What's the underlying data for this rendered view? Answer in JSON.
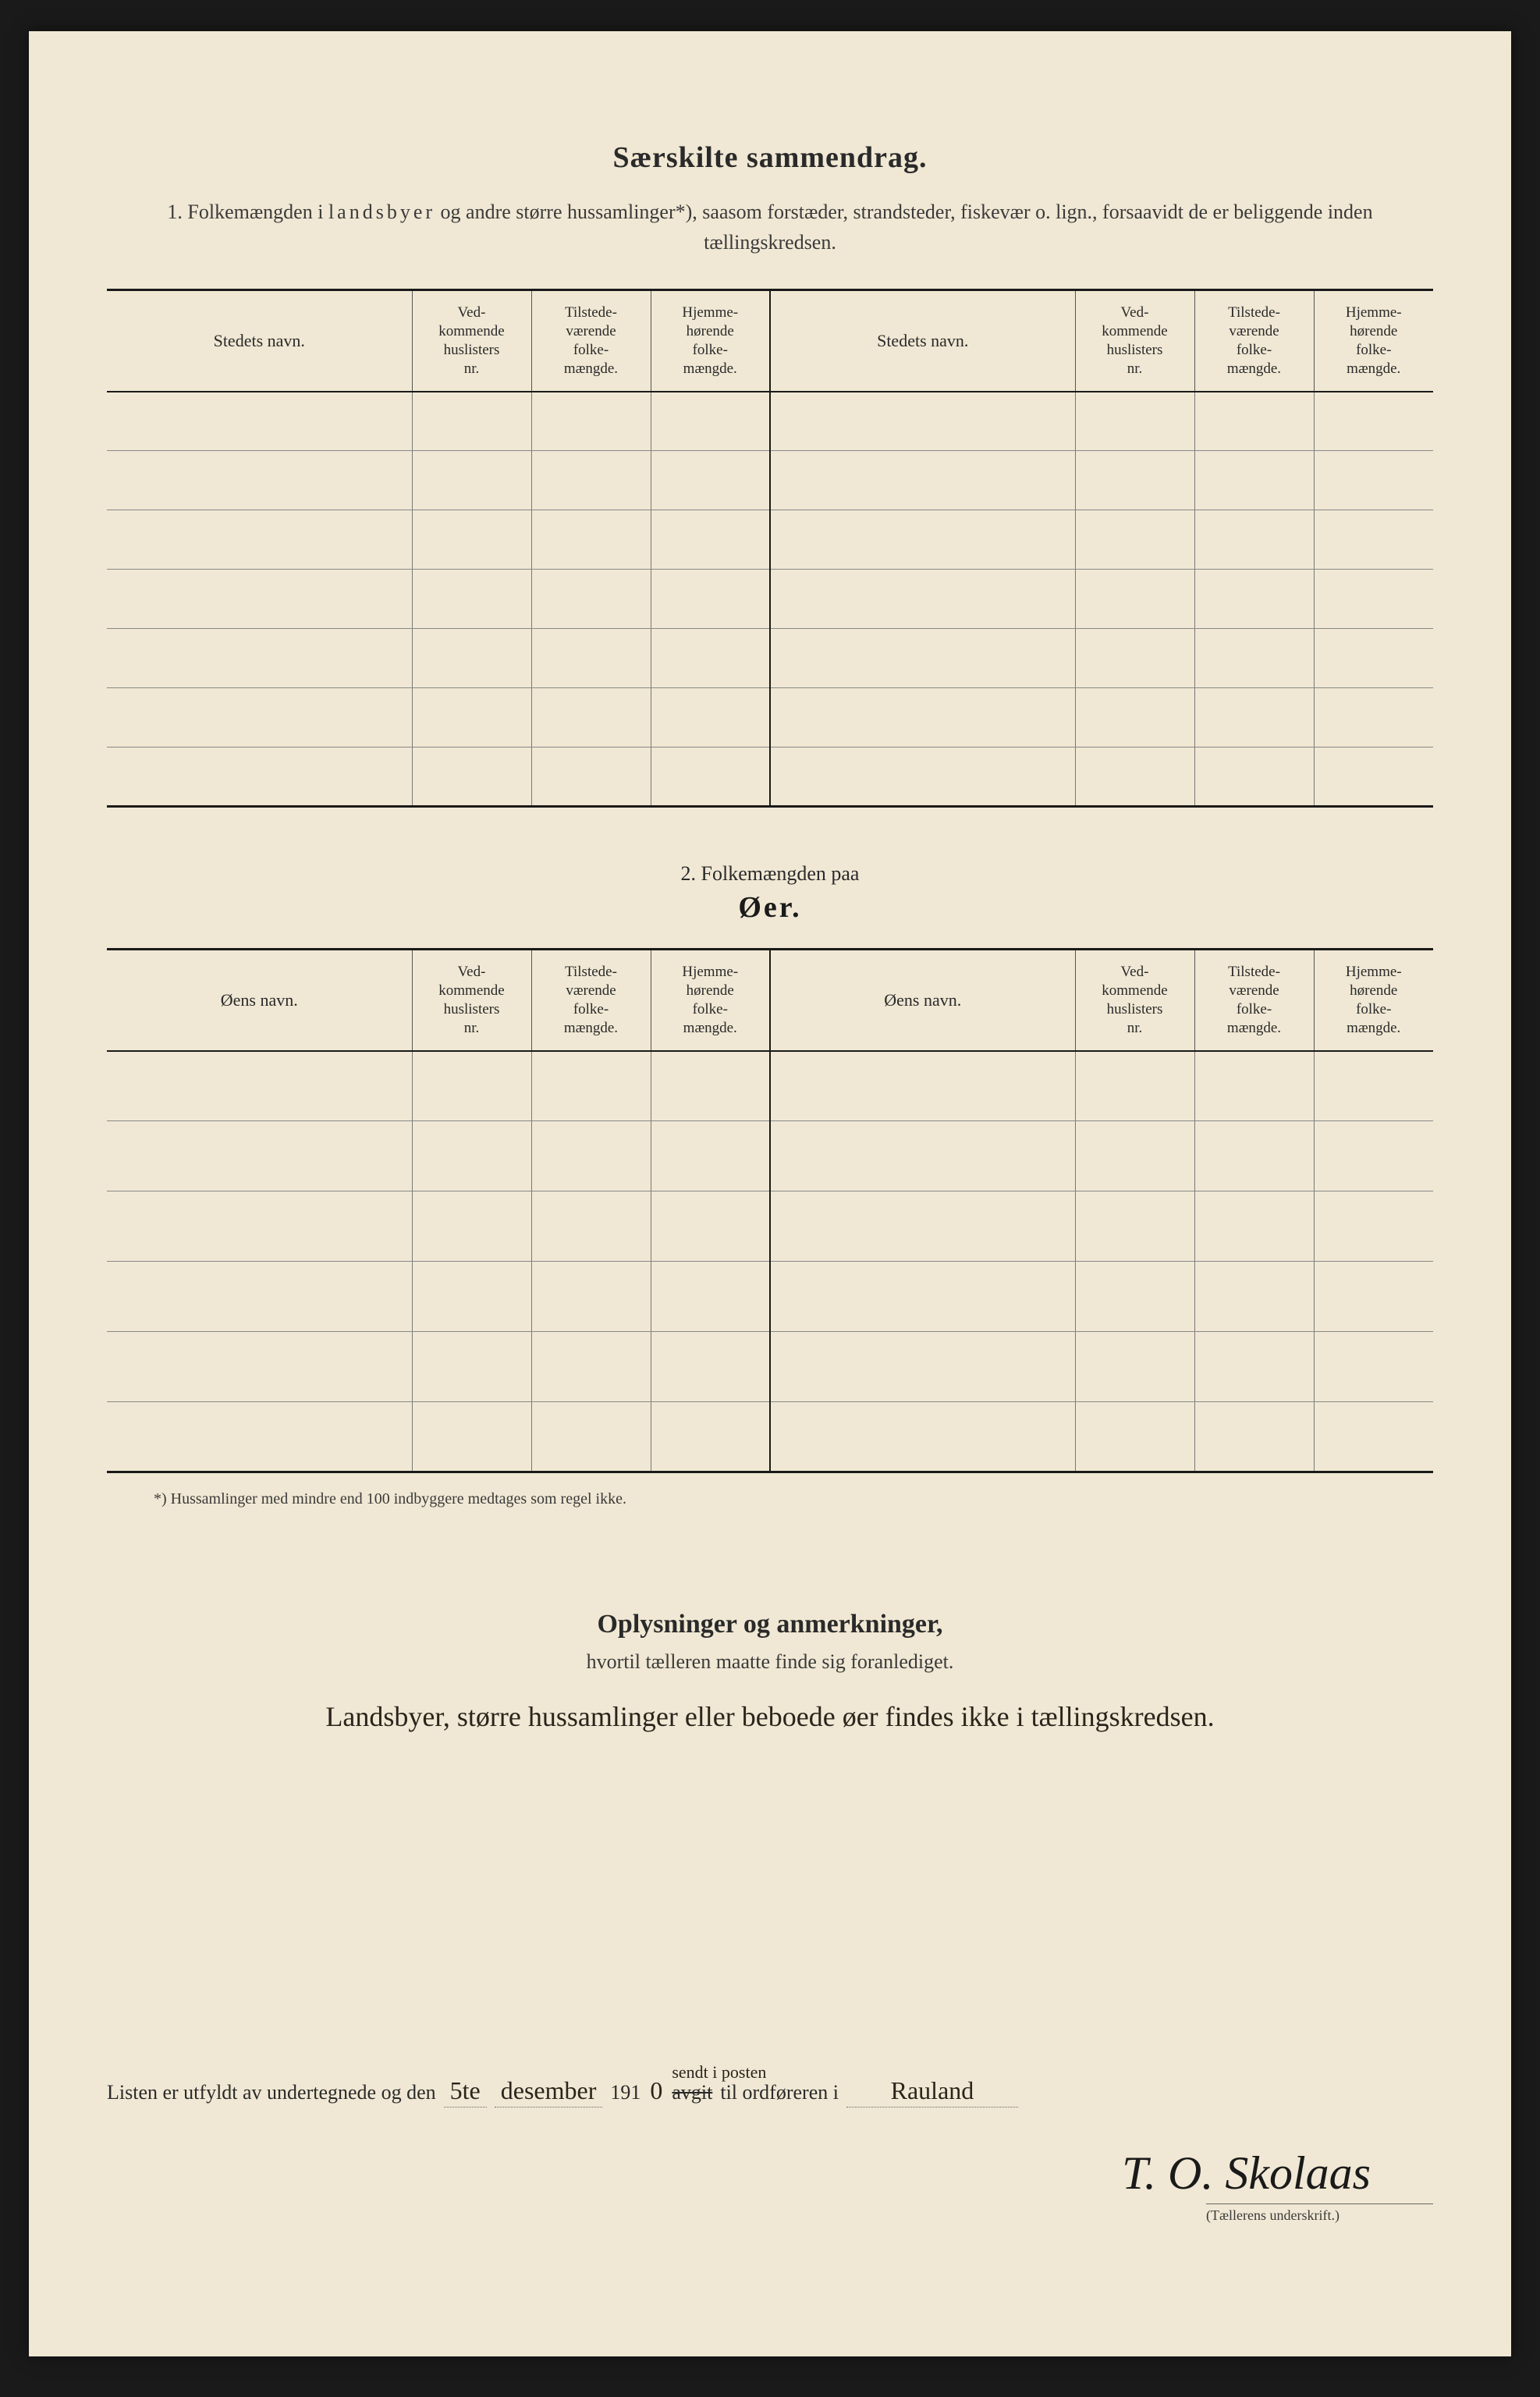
{
  "title": "Særskilte sammendrag.",
  "section1": {
    "intro_prefix": "1.   Folkemængden i ",
    "intro_spaced": "landsbyer",
    "intro_rest": " og andre større hussamlinger*), saasom forstæder, strandsteder, fiskevær o. lign., forsaavidt de er beliggende inden tællingskredsen.",
    "columns": [
      "Stedets navn.",
      "Ved-\nkommende\nhuslisters\nnr.",
      "Tilstede-\nværende\nfolke-\nmængde.",
      "Hjemme-\nhørende\nfolke-\nmængde.",
      "Stedets navn.",
      "Ved-\nkommende\nhuslisters\nnr.",
      "Tilstede-\nværende\nfolke-\nmængde.",
      "Hjemme-\nhørende\nfolke-\nmængde."
    ],
    "row_count": 7
  },
  "section2": {
    "line1": "2.   Folkemængden paa",
    "line2": "Øer.",
    "columns": [
      "Øens navn.",
      "Ved-\nkommende\nhuslisters\nnr.",
      "Tilstede-\nværende\nfolke-\nmængde.",
      "Hjemme-\nhørende\nfolke-\nmængde.",
      "Øens navn.",
      "Ved-\nkommende\nhuslisters\nnr.",
      "Tilstede-\nværende\nfolke-\nmængde.",
      "Hjemme-\nhørende\nfolke-\nmængde."
    ],
    "row_count": 6
  },
  "footnote": "*) Hussamlinger med mindre end 100 indbyggere medtages som regel ikke.",
  "remarks": {
    "title": "Oplysninger og anmerkninger,",
    "subtitle": "hvortil tælleren maatte finde sig foranlediget.",
    "handwritten": "Landsbyer, større hussamlinger eller beboede øer findes ikke i tællingskredsen."
  },
  "signature_block": {
    "prefix": "Listen er utfyldt av undertegnede og den",
    "date_day": "5te",
    "date_month": "desember",
    "year_print": "191",
    "year_hw": "0",
    "above_struck": "sendt i posten",
    "struck": "avgit",
    "mid": "til ordføreren i",
    "place": "Rauland",
    "signature": "T. O. Skolaas",
    "caption": "(Tællerens underskrift.)"
  },
  "style": {
    "page_bg": "#f0e8d4",
    "outer_bg": "#1a1a1a",
    "text_color": "#2a2a2a",
    "rule_color": "#1a1a1a",
    "light_rule": "#888",
    "handwriting_color": "#2a241c"
  }
}
